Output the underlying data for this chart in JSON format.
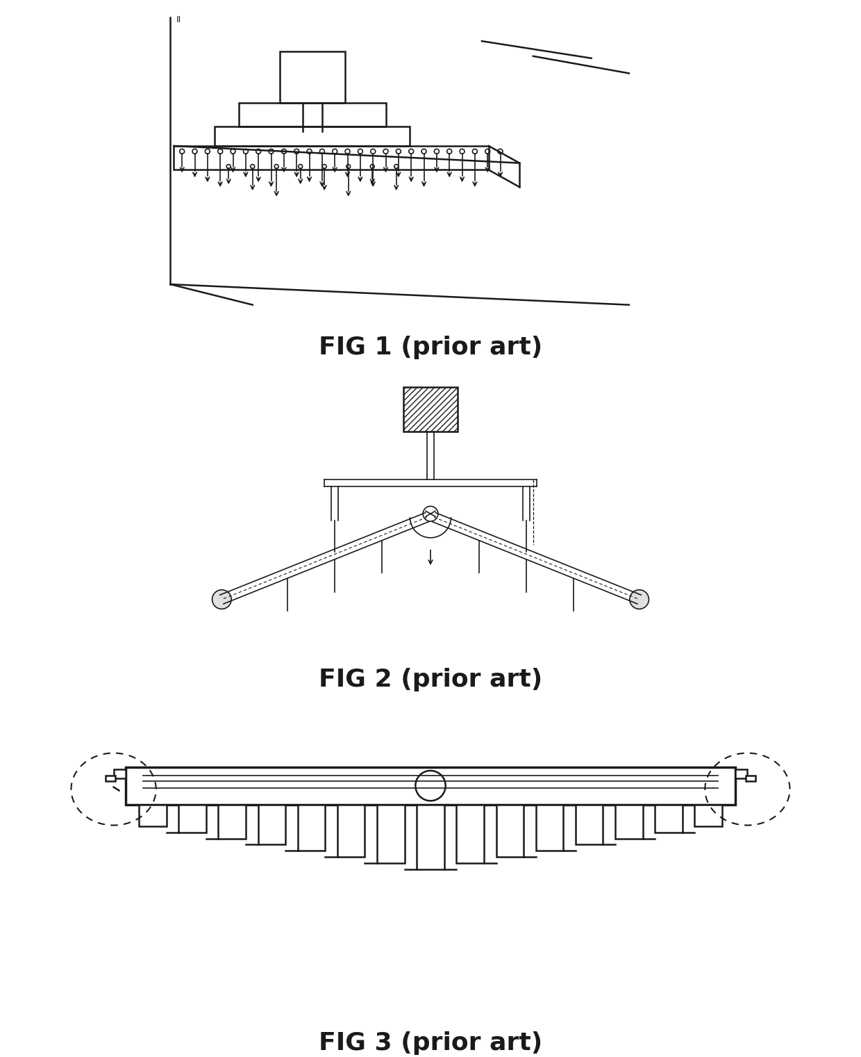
{
  "bg_color": "#ffffff",
  "fig_width": 12.4,
  "fig_height": 15.21,
  "fig1_label": "FIG 1 (prior art)",
  "fig2_label": "FIG 2 (prior art)",
  "fig3_label": "FIG 3 (prior art)",
  "label_fontsize": 26,
  "label_fontweight": "bold",
  "label_fontstyle": "normal",
  "line_color": "#1a1a1a"
}
